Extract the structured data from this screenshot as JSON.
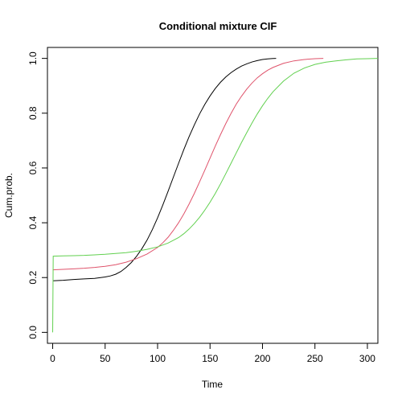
{
  "chart_data": {
    "type": "line",
    "title": "Conditional mixture CIF",
    "xlabel": "Time",
    "ylabel": "Cum.prob.",
    "xlim": [
      -5,
      310
    ],
    "ylim": [
      -0.04,
      1.04
    ],
    "x_ticks": [
      0,
      50,
      100,
      150,
      200,
      250,
      300
    ],
    "y_ticks": [
      0.0,
      0.2,
      0.4,
      0.6,
      0.8,
      1.0
    ],
    "x_tick_labels": [
      "0",
      "50",
      "100",
      "150",
      "200",
      "250",
      "300"
    ],
    "y_tick_labels": [
      "0.0",
      "0.2",
      "0.4",
      "0.6",
      "0.8",
      "1.0"
    ],
    "grid": false,
    "legend": false,
    "series": [
      {
        "color": "#000000",
        "x": [
          0,
          10,
          20,
          30,
          40,
          50,
          55,
          60,
          65,
          70,
          75,
          80,
          85,
          90,
          95,
          100,
          105,
          110,
          115,
          120,
          125,
          130,
          135,
          140,
          145,
          150,
          155,
          160,
          165,
          170,
          175,
          180,
          185,
          190,
          195,
          200,
          205,
          210,
          213
        ],
        "y": [
          0.188,
          0.19,
          0.193,
          0.195,
          0.197,
          0.202,
          0.206,
          0.212,
          0.222,
          0.237,
          0.255,
          0.278,
          0.305,
          0.337,
          0.375,
          0.418,
          0.465,
          0.515,
          0.566,
          0.617,
          0.667,
          0.714,
          0.757,
          0.797,
          0.832,
          0.863,
          0.89,
          0.913,
          0.932,
          0.948,
          0.961,
          0.972,
          0.98,
          0.987,
          0.992,
          0.996,
          0.998,
          0.9995,
          1.0
        ]
      },
      {
        "color": "#DF536B",
        "x": [
          0,
          10,
          20,
          30,
          40,
          50,
          60,
          70,
          80,
          90,
          100,
          105,
          110,
          115,
          120,
          125,
          130,
          135,
          140,
          145,
          150,
          155,
          160,
          165,
          170,
          175,
          180,
          185,
          190,
          195,
          200,
          205,
          210,
          220,
          230,
          240,
          250,
          258
        ],
        "y": [
          0.228,
          0.23,
          0.232,
          0.234,
          0.237,
          0.241,
          0.247,
          0.256,
          0.269,
          0.286,
          0.31,
          0.327,
          0.347,
          0.372,
          0.4,
          0.432,
          0.468,
          0.507,
          0.549,
          0.592,
          0.636,
          0.68,
          0.722,
          0.762,
          0.799,
          0.833,
          0.862,
          0.888,
          0.91,
          0.929,
          0.944,
          0.957,
          0.967,
          0.982,
          0.991,
          0.996,
          0.999,
          1.0
        ]
      },
      {
        "color": "#61D04F",
        "x": [
          0,
          0.5,
          10,
          20,
          30,
          40,
          50,
          60,
          70,
          80,
          90,
          100,
          110,
          120,
          125,
          130,
          135,
          140,
          145,
          150,
          155,
          160,
          165,
          170,
          175,
          180,
          185,
          190,
          195,
          200,
          205,
          210,
          220,
          230,
          240,
          250,
          260,
          270,
          280,
          290,
          300,
          310
        ],
        "y": [
          0.0,
          0.278,
          0.279,
          0.28,
          0.281,
          0.283,
          0.285,
          0.288,
          0.291,
          0.296,
          0.303,
          0.312,
          0.326,
          0.346,
          0.36,
          0.377,
          0.397,
          0.42,
          0.446,
          0.475,
          0.507,
          0.542,
          0.579,
          0.617,
          0.655,
          0.693,
          0.729,
          0.764,
          0.797,
          0.827,
          0.854,
          0.878,
          0.917,
          0.946,
          0.965,
          0.978,
          0.986,
          0.991,
          0.995,
          0.998,
          0.999,
          1.0
        ]
      }
    ]
  }
}
